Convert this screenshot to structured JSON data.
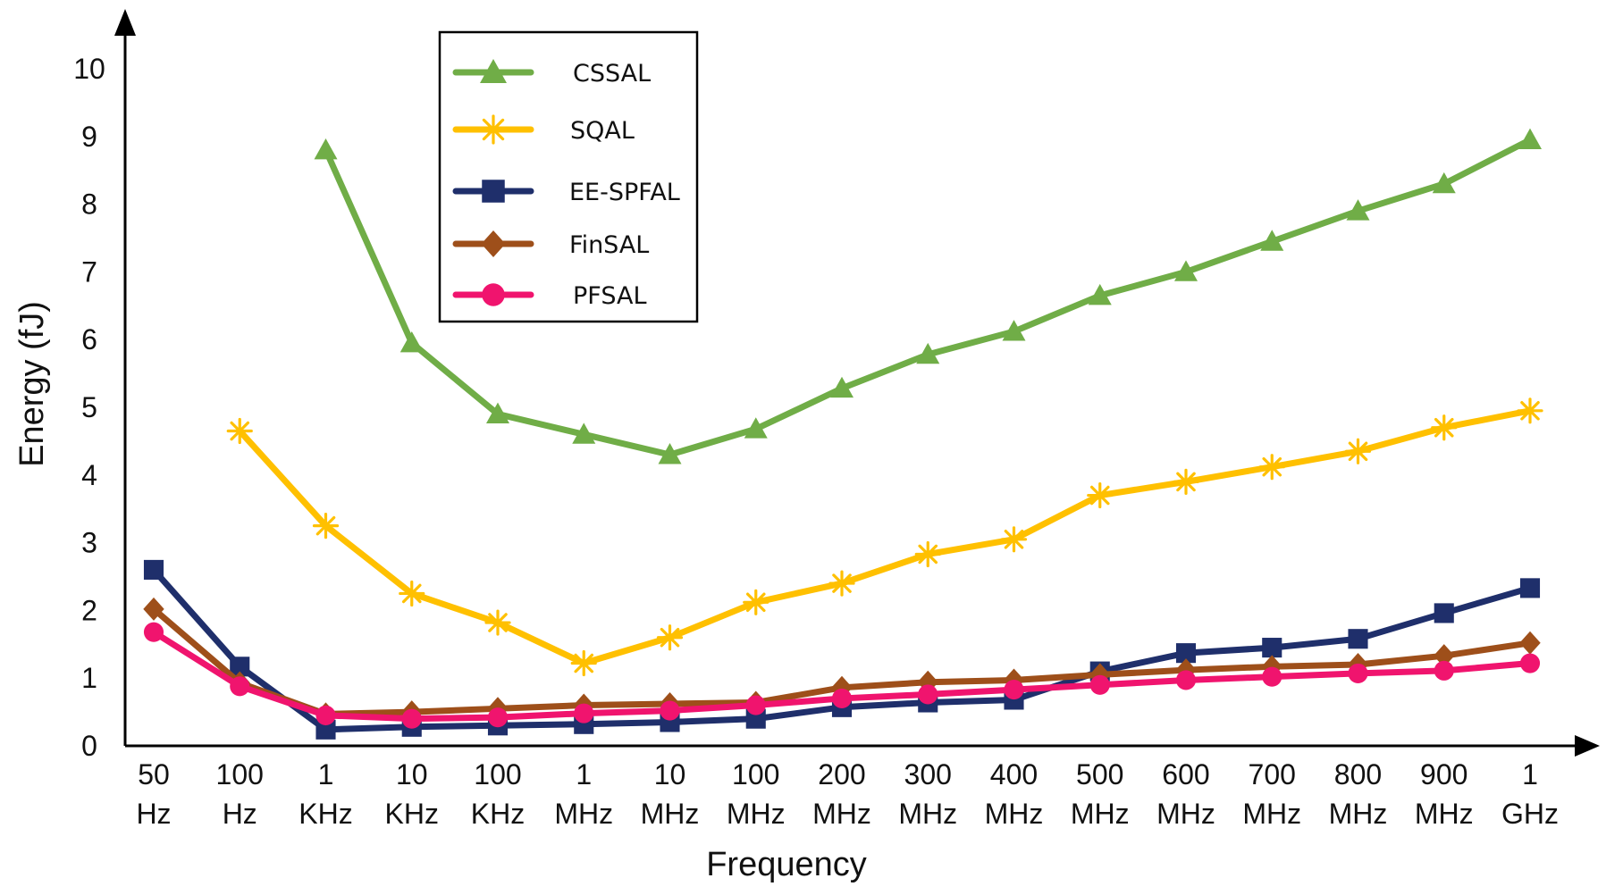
{
  "chart_data": {
    "type": "line",
    "title": "",
    "xlabel": "Frequency",
    "ylabel": "Energy (fJ)",
    "ylim": [
      0,
      10
    ],
    "yticks": [
      "0",
      "1",
      "2",
      "3",
      "4",
      "5",
      "6",
      "7",
      "8",
      "9",
      "10"
    ],
    "grid": false,
    "legend_position": "top-left",
    "categories": [
      [
        "50",
        "Hz"
      ],
      [
        "100",
        "Hz"
      ],
      [
        "1",
        "KHz"
      ],
      [
        "10",
        "KHz"
      ],
      [
        "100",
        "KHz"
      ],
      [
        "1",
        "MHz"
      ],
      [
        "10",
        "MHz"
      ],
      [
        "100",
        "MHz"
      ],
      [
        "200",
        "MHz"
      ],
      [
        "300",
        "MHz"
      ],
      [
        "400",
        "MHz"
      ],
      [
        "500",
        "MHz"
      ],
      [
        "600",
        "MHz"
      ],
      [
        "700",
        "MHz"
      ],
      [
        "800",
        "MHz"
      ],
      [
        "900",
        "MHz"
      ],
      [
        "1",
        "GHz"
      ]
    ],
    "series": [
      {
        "name": "CSSAL",
        "color": "#70AD47",
        "marker": "triangle",
        "values": [
          null,
          null,
          8.8,
          5.95,
          4.9,
          4.6,
          4.3,
          4.68,
          5.28,
          5.78,
          6.12,
          6.65,
          7.0,
          7.45,
          7.9,
          8.3,
          8.95
        ]
      },
      {
        "name": "SQAL",
        "color": "#FFC000",
        "marker": "asterisk",
        "values": [
          null,
          4.65,
          3.25,
          2.25,
          1.82,
          1.22,
          1.6,
          2.12,
          2.4,
          2.83,
          3.05,
          3.7,
          3.9,
          4.12,
          4.35,
          4.7,
          4.95
        ]
      },
      {
        "name": "EE-SPFAL",
        "color": "#1F2F6B",
        "marker": "square",
        "values": [
          2.6,
          1.17,
          0.24,
          0.28,
          0.3,
          0.32,
          0.35,
          0.4,
          0.57,
          0.64,
          0.68,
          1.1,
          1.37,
          1.45,
          1.58,
          1.96,
          2.33
        ]
      },
      {
        "name": "FinSAL",
        "color": "#9E4F1A",
        "marker": "diamond",
        "values": [
          2.02,
          0.93,
          0.47,
          0.5,
          0.55,
          0.6,
          0.62,
          0.64,
          0.86,
          0.94,
          0.97,
          1.05,
          1.12,
          1.17,
          1.2,
          1.33,
          1.52
        ]
      },
      {
        "name": "PFSAL",
        "color": "#F0146E",
        "marker": "circle",
        "values": [
          1.68,
          0.88,
          0.45,
          0.4,
          0.42,
          0.48,
          0.52,
          0.6,
          0.7,
          0.76,
          0.83,
          0.9,
          0.97,
          1.02,
          1.07,
          1.11,
          1.22
        ]
      }
    ]
  }
}
